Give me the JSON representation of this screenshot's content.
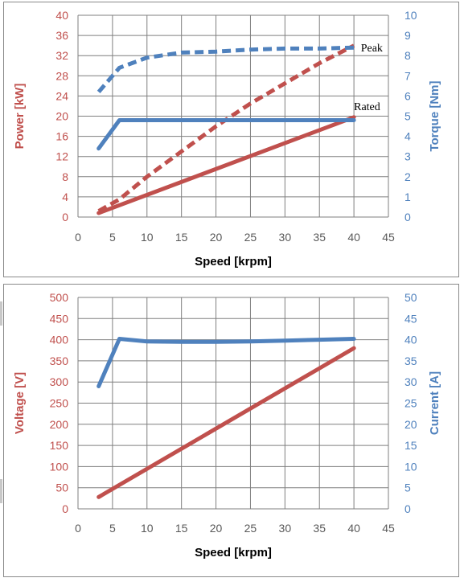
{
  "chart_data": [
    {
      "type": "line",
      "title": "",
      "xlabel": "Speed [krpm]",
      "ylabel": "Power [kW]",
      "y2label": "Torque [Nm]",
      "xlim": [
        0,
        45
      ],
      "ylim": [
        0,
        40
      ],
      "y2lim": [
        0,
        10
      ],
      "xticks": [
        0,
        5,
        10,
        15,
        20,
        25,
        30,
        35,
        40,
        45
      ],
      "yticks": [
        0,
        4,
        8,
        12,
        16,
        20,
        24,
        28,
        32,
        36,
        40
      ],
      "y2ticks": [
        0,
        1,
        2,
        3,
        4,
        5,
        6,
        7,
        8,
        9,
        10
      ],
      "grid": true,
      "legend": "none",
      "annotations": [
        {
          "text": "Peak",
          "x": 41,
          "y": 8.4,
          "axis": "y2"
        },
        {
          "text": "Rated",
          "x": 40,
          "y": 5.5,
          "axis": "y2"
        }
      ],
      "series": [
        {
          "axis": "y",
          "color": "#c0504d",
          "style": "dashed",
          "x": [
            3,
            6,
            10,
            15,
            20,
            25,
            30,
            35,
            40
          ],
          "values": [
            1.2,
            3.5,
            8,
            13,
            18,
            22.5,
            26.5,
            30.5,
            34
          ]
        },
        {
          "axis": "y",
          "color": "#c0504d",
          "style": "solid",
          "x": [
            3,
            40
          ],
          "values": [
            0.8,
            19.8
          ]
        },
        {
          "axis": "y2",
          "color": "#4f81bd",
          "style": "dashed",
          "x": [
            3,
            6,
            10,
            15,
            20,
            25,
            30,
            35,
            40
          ],
          "values": [
            6.2,
            7.4,
            7.9,
            8.15,
            8.2,
            8.3,
            8.35,
            8.35,
            8.4
          ]
        },
        {
          "axis": "y2",
          "color": "#4f81bd",
          "style": "solid",
          "x": [
            3,
            6,
            10,
            20,
            30,
            40
          ],
          "values": [
            3.4,
            4.8,
            4.8,
            4.8,
            4.8,
            4.8
          ]
        }
      ]
    },
    {
      "type": "line",
      "title": "",
      "xlabel": "Speed [krpm]",
      "ylabel": "Voltage [V]",
      "y2label": "Current [A]",
      "xlim": [
        0,
        45
      ],
      "ylim": [
        0,
        500
      ],
      "y2lim": [
        0,
        50
      ],
      "xticks": [
        0,
        5,
        10,
        15,
        20,
        25,
        30,
        35,
        40,
        45
      ],
      "yticks": [
        0,
        50,
        100,
        150,
        200,
        250,
        300,
        350,
        400,
        450,
        500
      ],
      "y2ticks": [
        0,
        5,
        10,
        15,
        20,
        25,
        30,
        35,
        40,
        45,
        50
      ],
      "grid": true,
      "legend": "none",
      "annotations": [],
      "series": [
        {
          "axis": "y",
          "color": "#c0504d",
          "style": "solid",
          "x": [
            3,
            40
          ],
          "values": [
            28,
            380
          ]
        },
        {
          "axis": "y2",
          "color": "#4f81bd",
          "style": "solid",
          "x": [
            3,
            6,
            10,
            15,
            20,
            25,
            30,
            35,
            40
          ],
          "values": [
            29,
            40.2,
            39.6,
            39.5,
            39.5,
            39.6,
            39.8,
            40,
            40.2
          ]
        }
      ]
    }
  ]
}
